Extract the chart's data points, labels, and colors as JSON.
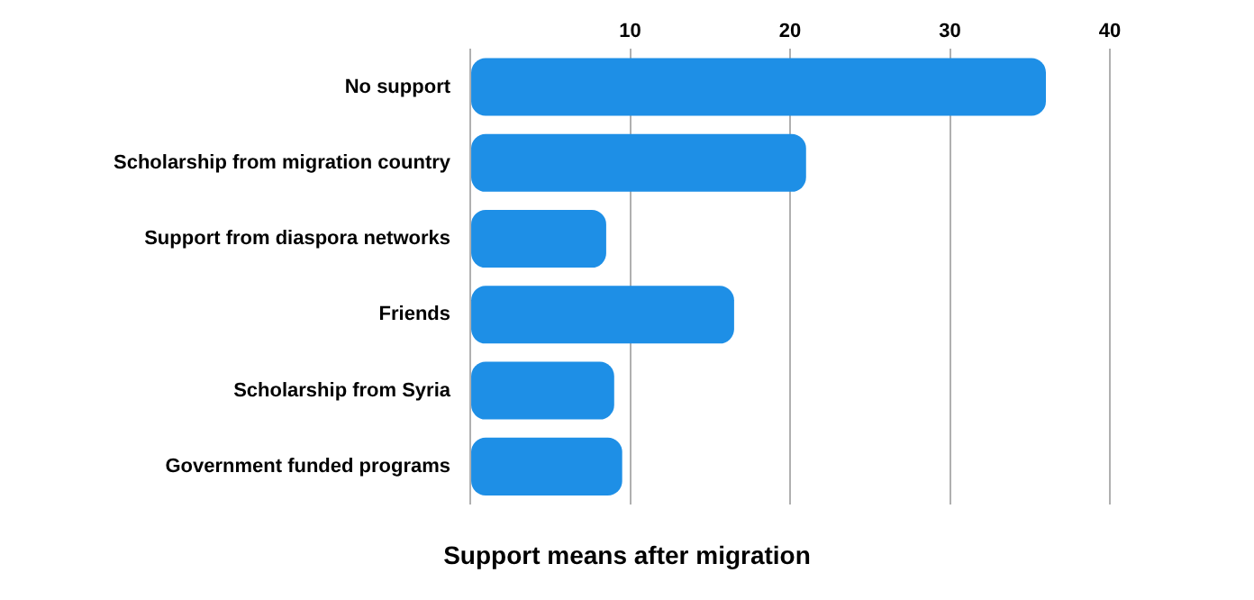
{
  "chart_data": {
    "type": "bar",
    "orientation": "horizontal",
    "xlabel": "Support means after migration",
    "categories": [
      "No support",
      "Scholarship from migration country",
      "Support from diaspora networks",
      "Friends",
      "Scholarship from Syria",
      "Government funded programs"
    ],
    "values": [
      36,
      21,
      8.5,
      16.5,
      9,
      9.5
    ],
    "color": "#1e8fe6",
    "xlim": [
      0,
      40
    ],
    "xticks": [
      {
        "value": 0,
        "label": null
      },
      10,
      20,
      30,
      40
    ],
    "grid": "x"
  }
}
